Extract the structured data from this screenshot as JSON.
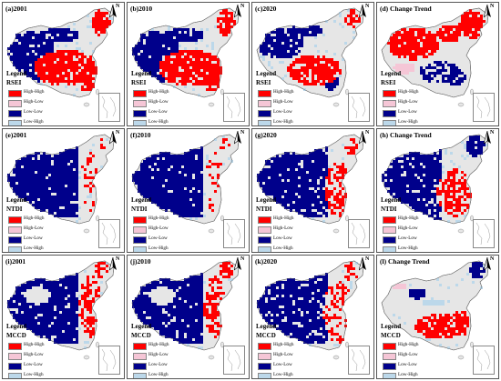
{
  "legend_title": "Legend",
  "north_label": "N",
  "categories": [
    {
      "label": "High-High",
      "color": "#ff0000"
    },
    {
      "label": "High-Low",
      "color": "#f5c6d6"
    },
    {
      "label": "Low-Low",
      "color": "#00008b"
    },
    {
      "label": "Low-High",
      "color": "#bcd8ea"
    }
  ],
  "base_color": "#e6e6e6",
  "panels": [
    {
      "id": "a",
      "title": "(a)2001",
      "variable": "RSEI",
      "pattern": "rsei_early"
    },
    {
      "id": "b",
      "title": "(b)2010",
      "variable": "RSEI",
      "pattern": "rsei_early"
    },
    {
      "id": "c",
      "title": "(c)2020",
      "variable": "RSEI",
      "pattern": "rsei_late"
    },
    {
      "id": "d",
      "title": "(d) Change Trend",
      "variable": "RSEI",
      "pattern": "rsei_trend"
    },
    {
      "id": "e",
      "title": "(e)2001",
      "variable": "NTDI",
      "pattern": "ntdi_early"
    },
    {
      "id": "f",
      "title": "(f)2010",
      "variable": "NTDI",
      "pattern": "ntdi_early"
    },
    {
      "id": "g",
      "title": "(g)2020",
      "variable": "NTDI",
      "pattern": "ntdi_late"
    },
    {
      "id": "h",
      "title": "(h) Change Trend",
      "variable": "NTDI",
      "pattern": "ntdi_trend"
    },
    {
      "id": "i",
      "title": "(i)2001",
      "variable": "MCCD",
      "pattern": "mccd_early"
    },
    {
      "id": "j",
      "title": "(j)2010",
      "variable": "MCCD",
      "pattern": "mccd_early"
    },
    {
      "id": "k",
      "title": "(k)2020",
      "variable": "MCCD",
      "pattern": "mccd_late"
    },
    {
      "id": "l",
      "title": "(l) Change Trend",
      "variable": "MCCD",
      "pattern": "mccd_trend"
    }
  ]
}
